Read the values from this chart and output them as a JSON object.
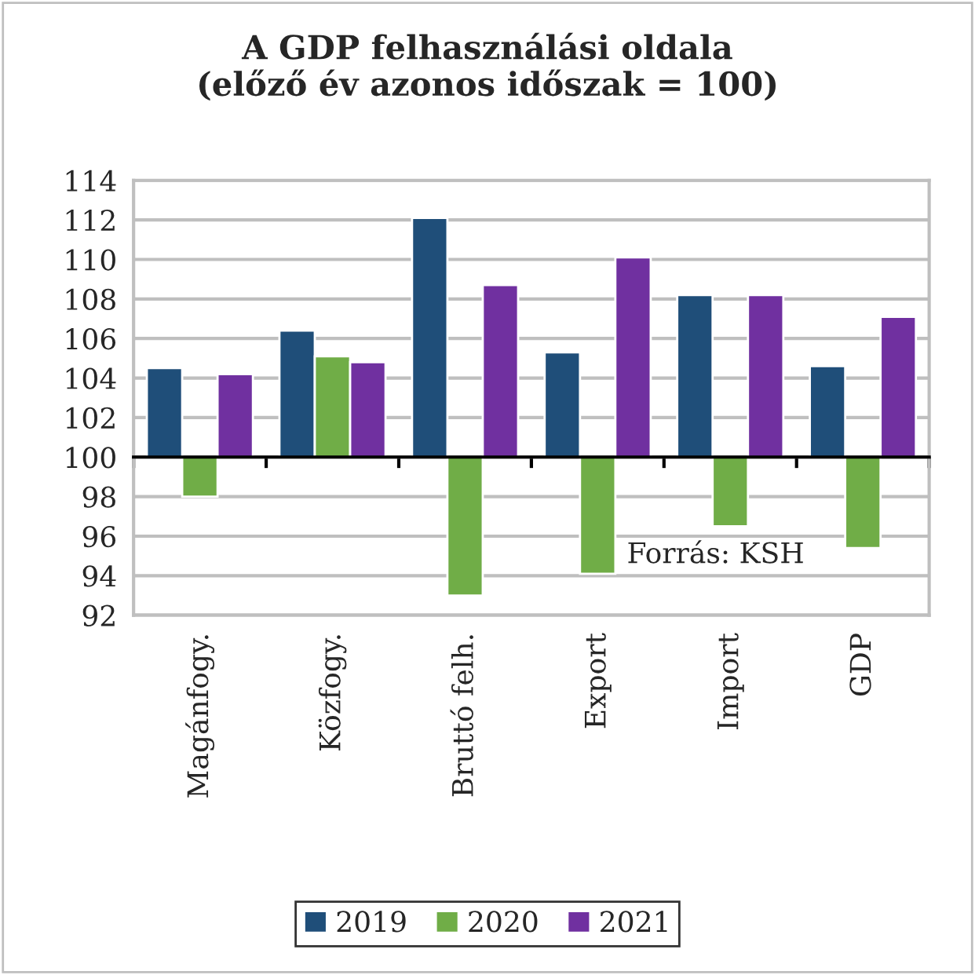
{
  "chart_data": {
    "type": "bar",
    "title": "A GDP felhasználási oldala\n(előző év azonos időszak = 100)",
    "categories": [
      "Magánfogy.",
      "Közfogy.",
      "Bruttó felh.",
      "Export",
      "Import",
      "GDP"
    ],
    "series": [
      {
        "name": "2019",
        "color": "#1f4e79",
        "values": [
          4.5,
          6.4,
          12.1,
          5.3,
          8.2,
          4.6
        ],
        "base": [
          100,
          100,
          100,
          100,
          100,
          100
        ]
      },
      {
        "name": "2020",
        "color": "#70ad47",
        "values": [
          -2.0,
          5.1,
          -7.0,
          -5.9,
          -3.5,
          -4.6
        ],
        "base": [
          100,
          100,
          100,
          100,
          100,
          100
        ]
      },
      {
        "name": "2021",
        "color": "#7030a0",
        "values": [
          4.2,
          4.8,
          8.7,
          10.1,
          8.2,
          7.1
        ],
        "base": [
          100,
          100,
          100,
          100,
          100,
          100
        ]
      }
    ],
    "ylim": [
      92,
      114
    ],
    "yticks": [
      92,
      94,
      96,
      98,
      100,
      102,
      104,
      106,
      108,
      110,
      112,
      114
    ],
    "grid": "y",
    "legend": "bottom",
    "ref_lines": [
      {
        "axis": "y",
        "value": 100,
        "color": "#000000"
      }
    ],
    "annotations": [
      "Forrás: KSH"
    ]
  }
}
